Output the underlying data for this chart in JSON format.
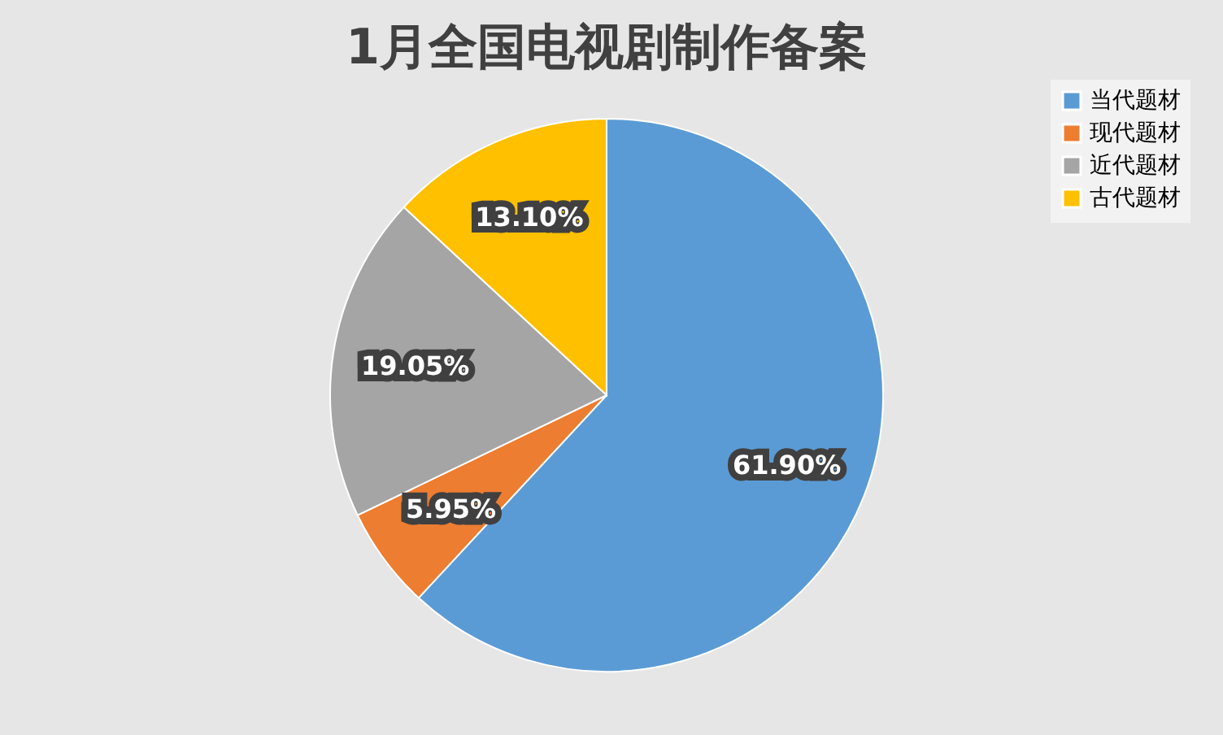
{
  "chart_data": {
    "type": "pie",
    "title": "1月全国电视剧制作备案",
    "categories": [
      "当代题材",
      "现代题材",
      "近代题材",
      "古代题材"
    ],
    "values": [
      61.9,
      5.95,
      19.05,
      13.1
    ],
    "colors": [
      "#5b9bd5",
      "#ed7d31",
      "#a5a5a5",
      "#ffc000"
    ],
    "value_labels": [
      "61.90%",
      "5.95%",
      "19.05%",
      "13.10%"
    ],
    "legend": "right"
  }
}
